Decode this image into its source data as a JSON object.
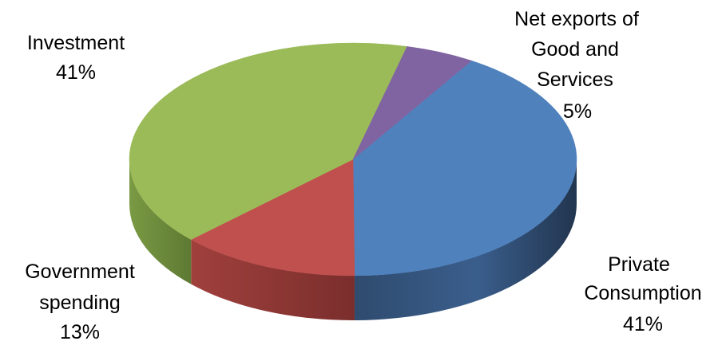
{
  "chart_data": {
    "type": "pie",
    "style": "3d",
    "slices": [
      {
        "label": "Private Consumption",
        "label_lines": [
          "Private",
          "Consumption"
        ],
        "value_label": "41%",
        "value": 41,
        "color": "#4F81BD"
      },
      {
        "label": "Government spending",
        "label_lines": [
          "Government",
          "spending"
        ],
        "value_label": "13%",
        "value": 13,
        "color": "#C0504D"
      },
      {
        "label": "Investment",
        "label_lines": [
          "Investment"
        ],
        "value_label": "41%",
        "value": 41,
        "color": "#9BBB59"
      },
      {
        "label": "Net exports of Good and Services",
        "label_lines": [
          "Net exports of",
          "Good and",
          "Services"
        ],
        "value_label": "5%",
        "value": 5,
        "color": "#8064A2"
      }
    ]
  }
}
